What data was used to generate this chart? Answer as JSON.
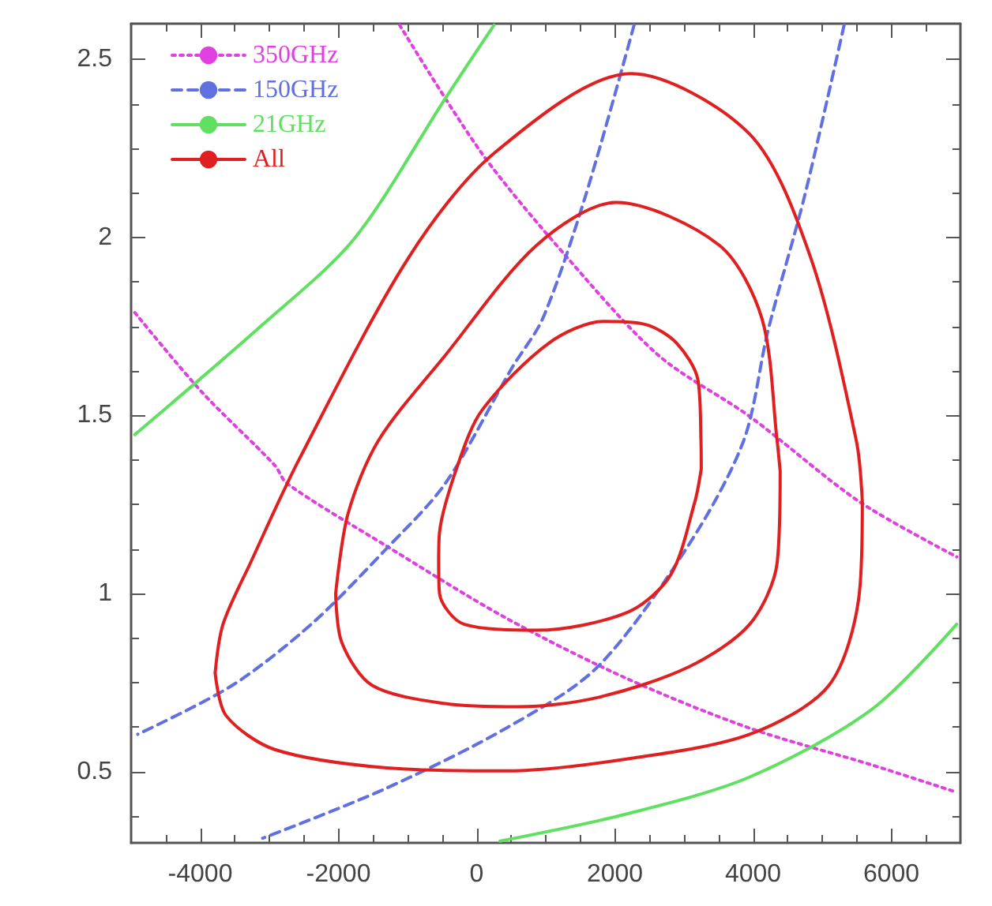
{
  "chart_data": {
    "type": "line",
    "xlim": [
      -5000,
      7000
    ],
    "ylim": [
      0.3,
      2.6
    ],
    "xticks": [
      -4000,
      -2000,
      0,
      2000,
      4000,
      6000
    ],
    "yticks": [
      0.5,
      1,
      1.5,
      2,
      2.5
    ],
    "grid": false,
    "legend": "top left",
    "marker": "none",
    "series": [
      {
        "name": "350GHz",
        "color": "#e040e0",
        "line_style": "dotted",
        "x": [
          -1114,
          75,
          1308,
          2630,
          3952,
          5537,
          6947,
          null,
          -4947,
          -3978,
          -2921,
          -2744,
          -1335,
          427,
          2189,
          3952,
          5714,
          6947
        ],
        "values": [
          2.596,
          2.236,
          1.944,
          1.669,
          1.497,
          1.258,
          1.103,
          null,
          1.789,
          1.566,
          1.36,
          1.309,
          1.137,
          0.931,
          0.76,
          0.622,
          0.519,
          0.442
        ]
      },
      {
        "name": "150GHz",
        "color": "#6070e0",
        "line_style": "dashed",
        "x": [
          2278,
          1573,
          956,
          515,
          -454,
          -1335,
          -2392,
          -3537,
          -4903,
          null,
          5317,
          4744,
          4216,
          3863,
          3070,
          1749,
          427,
          -1335,
          -3097
        ],
        "values": [
          2.596,
          2.115,
          1.772,
          1.635,
          1.309,
          1.12,
          0.914,
          0.742,
          0.605,
          null,
          2.596,
          2.115,
          1.738,
          1.429,
          1.137,
          0.794,
          0.622,
          0.451,
          0.313
        ]
      },
      {
        "name": "21GHz",
        "color": "#60e060",
        "line_style": "solid",
        "x": [
          251,
          -454,
          -1776,
          -3097,
          -4947,
          null,
          339,
          2189,
          3952,
          5714,
          6947
        ],
        "values": [
          2.596,
          2.39,
          1.995,
          1.755,
          1.446,
          null,
          0.305,
          0.382,
          0.485,
          0.674,
          0.914
        ]
      },
      {
        "name": "All",
        "color": "#e02020",
        "line_style": "solid",
        "x": [
          -3784,
          -3670,
          -3273,
          -2568,
          -982,
          251,
          2233,
          3950,
          4832,
          5493,
          5581,
          null,
          -3784,
          -3625,
          -2920,
          -1335,
          427,
          2189,
          3952,
          5097,
          5537,
          5581,
          null,
          -2040,
          -1863,
          -1423,
          -454,
          868,
          2013,
          3511,
          4128,
          4348,
          4392,
          null,
          -2040,
          -1952,
          -1511,
          -454,
          603,
          1749,
          3070,
          3952,
          4348,
          4392,
          null,
          -550,
          -537,
          -273,
          79,
          1044,
          1837,
          2453,
          2894,
          3202,
          3246,
          3250,
          null,
          -550,
          -537,
          -185,
          872,
          2189,
          2806,
          3158,
          3250
        ],
        "values": [
          0.777,
          0.914,
          1.086,
          1.377,
          1.944,
          2.236,
          2.46,
          2.29,
          1.944,
          1.43,
          1.258,
          null,
          0.777,
          0.657,
          0.562,
          0.511,
          0.502,
          0.536,
          0.605,
          0.742,
          1.0,
          1.258,
          null,
          1.0,
          1.223,
          1.429,
          1.669,
          1.978,
          2.098,
          1.978,
          1.772,
          1.429,
          1.343,
          null,
          1.0,
          0.863,
          0.742,
          0.691,
          0.682,
          0.708,
          0.794,
          0.914,
          1.086,
          1.343,
          null,
          1.09,
          1.172,
          1.361,
          1.515,
          1.703,
          1.764,
          1.755,
          1.703,
          1.6,
          1.429,
          1.35,
          null,
          1.09,
          1.0,
          0.914,
          0.897,
          0.948,
          1.052,
          1.258,
          1.35
        ]
      }
    ]
  }
}
